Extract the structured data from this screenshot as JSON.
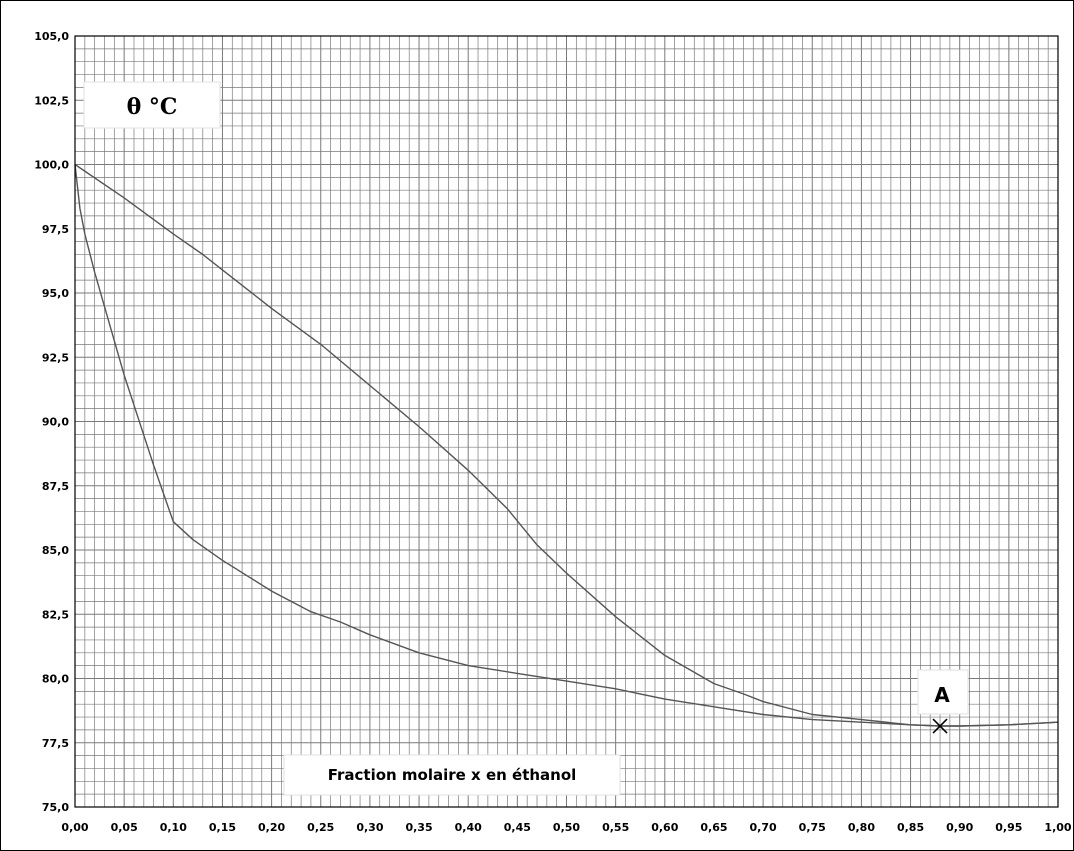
{
  "chart_data": {
    "type": "line",
    "ylabel": "θ °C",
    "xlabel": "Fraction molaire x en éthanol",
    "xlim": [
      0,
      1
    ],
    "ylim": [
      75,
      105
    ],
    "x_ticks": [
      "0,00",
      "0,05",
      "0,10",
      "0,15",
      "0,20",
      "0,25",
      "0,30",
      "0,35",
      "0,40",
      "0,45",
      "0,50",
      "0,55",
      "0,60",
      "0,65",
      "0,70",
      "0,75",
      "0,80",
      "0,85",
      "0,90",
      "0,95",
      "1,00"
    ],
    "y_ticks": [
      "75,0",
      "77,5",
      "80,0",
      "82,5",
      "85,0",
      "87,5",
      "90,0",
      "92,5",
      "95,0",
      "97,5",
      "100,0",
      "102,5",
      "105,0"
    ],
    "grid": true,
    "series": [
      {
        "x": [
          0,
          0.05,
          0.1,
          0.13,
          0.15,
          0.2,
          0.25,
          0.3,
          0.35,
          0.4,
          0.44,
          0.47,
          0.5,
          0.55,
          0.6,
          0.65,
          0.68,
          0.7,
          0.75,
          0.8,
          0.85,
          0.88,
          0.9,
          0.95,
          1.0
        ],
        "y": [
          100.0,
          98.7,
          97.3,
          96.5,
          95.9,
          94.4,
          93.0,
          91.4,
          89.8,
          88.1,
          86.6,
          85.2,
          84.1,
          82.4,
          80.9,
          79.8,
          79.4,
          79.1,
          78.6,
          78.4,
          78.2,
          78.15,
          78.15,
          78.2,
          78.3
        ]
      },
      {
        "x": [
          0,
          0.005,
          0.01,
          0.02,
          0.05,
          0.08,
          0.1,
          0.12,
          0.15,
          0.2,
          0.24,
          0.27,
          0.3,
          0.35,
          0.4,
          0.45,
          0.5,
          0.55,
          0.6,
          0.65,
          0.7,
          0.75,
          0.8,
          0.85,
          0.88,
          0.9,
          0.95,
          1.0
        ],
        "y": [
          100.0,
          98.3,
          97.3,
          95.8,
          91.8,
          88.3,
          86.1,
          85.4,
          84.6,
          83.4,
          82.6,
          82.2,
          81.7,
          81.0,
          80.5,
          80.2,
          79.9,
          79.6,
          79.2,
          78.9,
          78.6,
          78.4,
          78.3,
          78.2,
          78.15,
          78.15,
          78.2,
          78.3
        ]
      }
    ],
    "annotations": [
      {
        "text": "A",
        "x": 0.88,
        "y": 78.15,
        "marker": "x"
      }
    ],
    "colors": {
      "line": "#555555",
      "grid": "#7a7a7a",
      "axis": "#000000",
      "background": "#ffffff"
    }
  }
}
